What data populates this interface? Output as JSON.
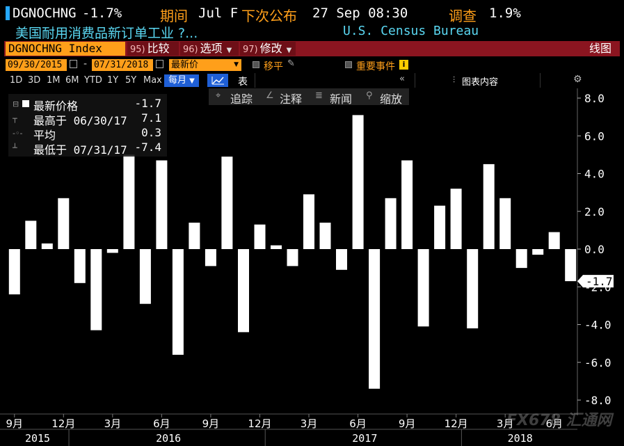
{
  "header": {
    "ticker": "DGNOCHNG",
    "change": "-1.7%",
    "next_label": "期间",
    "next_value": "Jul F",
    "release_label": "下次公布",
    "release_value": "27 Sep 08:30",
    "survey_label": "调查",
    "survey_value": "1.9%",
    "description": "美国耐用消费品新订单工业 ?...",
    "source": "U.S. Census Bureau"
  },
  "toolbar": {
    "index_label": "DGNOCHNG Index",
    "compare_num": "95)",
    "compare_label": "比较",
    "options_num": "96)",
    "options_label": "选项",
    "edit_num": "97)",
    "edit_label": "修改",
    "chart_label": "线图"
  },
  "date_row": {
    "start_date": "09/30/2015",
    "end_date": "07/31/2018",
    "dash": "-",
    "price_field": "最新价",
    "moving_avg_label": "移平",
    "events_label": "重要事件",
    "info_icon": "i"
  },
  "period_row": {
    "periods": [
      "1D",
      "3D",
      "1M",
      "6M",
      "YTD",
      "1Y",
      "5Y",
      "Max"
    ],
    "frequency": "每月",
    "table_label": "表",
    "collapse_icon": "«",
    "chart_content_label": "图表内容",
    "gear_icon": "⚙"
  },
  "legend": {
    "last_label": "最新价格",
    "last_value": "-1.7",
    "high_label": "最高于 06/30/17",
    "high_value": "7.1",
    "avg_label": "平均",
    "avg_value": "0.3",
    "low_label": "最低于 07/31/17",
    "low_value": "-7.4"
  },
  "chart_tools": {
    "track_label": "追踪",
    "annotate_label": "注释",
    "news_label": "新闻",
    "zoom_label": "缩放"
  },
  "chart_data": {
    "type": "bar",
    "categories": [
      "2015-09",
      "2015-10",
      "2015-11",
      "2015-12",
      "2016-01",
      "2016-02",
      "2016-03",
      "2016-04",
      "2016-05",
      "2016-06",
      "2016-07",
      "2016-08",
      "2016-09",
      "2016-10",
      "2016-11",
      "2016-12",
      "2017-01",
      "2017-02",
      "2017-03",
      "2017-04",
      "2017-05",
      "2017-06",
      "2017-07",
      "2017-08",
      "2017-09",
      "2017-10",
      "2017-11",
      "2017-12",
      "2018-01",
      "2018-02",
      "2018-03",
      "2018-04",
      "2018-05",
      "2018-06",
      "2018-07"
    ],
    "values": [
      -2.4,
      1.5,
      0.3,
      2.7,
      -1.8,
      -4.3,
      -0.2,
      5.0,
      -2.9,
      4.7,
      -5.6,
      1.4,
      -0.9,
      4.9,
      -4.4,
      1.3,
      0.2,
      -0.9,
      2.9,
      1.4,
      -1.1,
      7.1,
      -7.4,
      2.7,
      4.7,
      -4.1,
      2.3,
      3.2,
      -4.2,
      4.5,
      2.7,
      -1.0,
      -0.3,
      0.9,
      -1.7
    ],
    "ylim": [
      -8.7,
      8.7
    ],
    "yticks": [
      "8.0",
      "6.0",
      "4.0",
      "2.0",
      "0.0",
      "-2.0",
      "-4.0",
      "-6.0",
      "-8.0"
    ],
    "x_month_labels": [
      "9月",
      "12月",
      "3月",
      "6月",
      "9月",
      "12月",
      "3月",
      "6月",
      "9月",
      "12月",
      "3月",
      "6月"
    ],
    "x_year_labels": [
      "2015",
      "2016",
      "2017",
      "2018"
    ],
    "last_value_tag": "-1.7",
    "bar_color": "#ffffff",
    "background_color": "#000000",
    "grid": false
  },
  "watermark": "FX678 汇通网"
}
